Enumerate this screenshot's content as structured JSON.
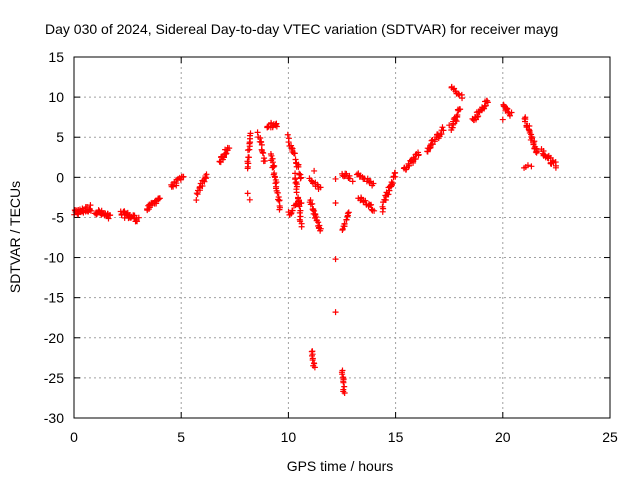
{
  "chart_data": {
    "type": "scatter",
    "title": "Day 030 of 2024, Sidereal Day-to-day VTEC variation (SDTVAR) for receiver mayg",
    "xlabel": "GPS time / hours",
    "ylabel": "SDTVAR / TECUs",
    "xlim": [
      0,
      25
    ],
    "ylim": [
      -30,
      15
    ],
    "xticks": [
      0,
      5,
      10,
      15,
      20,
      25
    ],
    "xtick_labels": [
      "0",
      "5",
      "10",
      "15",
      "20",
      "25"
    ],
    "yticks": [
      15,
      10,
      5,
      0,
      -5,
      -10,
      -15,
      -20,
      -25,
      -30
    ],
    "ytick_labels": [
      "15",
      "10",
      "5",
      "0",
      "-5",
      "-10",
      "-15",
      "-20",
      "-25",
      "-30"
    ],
    "grid": true,
    "marker": "+",
    "color": "#ff0000",
    "segments": [
      {
        "x0": 0.0,
        "y0": -4.5,
        "x1": 0.8,
        "y1": -3.8,
        "n": 30,
        "spread": 0.8
      },
      {
        "x0": 1.0,
        "y0": -4.2,
        "x1": 1.7,
        "y1": -5.0,
        "n": 25,
        "spread": 0.8
      },
      {
        "x0": 2.2,
        "y0": -4.5,
        "x1": 3.0,
        "y1": -5.2,
        "n": 28,
        "spread": 0.8
      },
      {
        "x0": 3.4,
        "y0": -4.0,
        "x1": 4.0,
        "y1": -2.5,
        "n": 20,
        "spread": 0.6
      },
      {
        "x0": 4.5,
        "y0": -1.2,
        "x1": 5.1,
        "y1": 0.0,
        "n": 14,
        "spread": 0.6
      },
      {
        "x0": 5.7,
        "y0": -2.5,
        "x1": 6.2,
        "y1": 0.5,
        "n": 16,
        "spread": 0.8
      },
      {
        "x0": 6.8,
        "y0": 2.0,
        "x1": 7.2,
        "y1": 3.5,
        "n": 18,
        "spread": 0.8
      },
      {
        "x0": 8.1,
        "y0": 1.0,
        "x1": 8.2,
        "y1": 5.5,
        "n": 16,
        "spread": 0.6
      },
      {
        "x0": 8.6,
        "y0": 5.5,
        "x1": 8.9,
        "y1": 2.0,
        "n": 14,
        "spread": 0.6
      },
      {
        "x0": 9.0,
        "y0": 6.5,
        "x1": 9.5,
        "y1": 6.5,
        "n": 14,
        "spread": 0.7
      },
      {
        "x0": 9.2,
        "y0": 3.0,
        "x1": 9.6,
        "y1": -4.0,
        "n": 28,
        "spread": 0.8
      },
      {
        "x0": 10.0,
        "y0": 5.0,
        "x1": 10.6,
        "y1": 0.0,
        "n": 24,
        "spread": 0.9
      },
      {
        "x0": 10.0,
        "y0": -4.5,
        "x1": 10.6,
        "y1": -3.0,
        "n": 14,
        "spread": 0.6
      },
      {
        "x0": 10.3,
        "y0": 0.5,
        "x1": 10.6,
        "y1": -6.0,
        "n": 22,
        "spread": 0.6
      },
      {
        "x0": 11.0,
        "y0": -0.2,
        "x1": 11.5,
        "y1": -1.5,
        "n": 10,
        "spread": 0.5
      },
      {
        "x0": 11.0,
        "y0": -3.0,
        "x1": 11.5,
        "y1": -6.8,
        "n": 22,
        "spread": 0.5
      },
      {
        "x0": 11.1,
        "y0": -21.5,
        "x1": 11.2,
        "y1": -23.8,
        "n": 10,
        "spread": 0.4
      },
      {
        "x0": 12.5,
        "y0": -24.0,
        "x1": 12.6,
        "y1": -26.8,
        "n": 12,
        "spread": 0.4
      },
      {
        "x0": 12.5,
        "y0": -6.5,
        "x1": 12.8,
        "y1": -4.5,
        "n": 12,
        "spread": 0.5
      },
      {
        "x0": 12.5,
        "y0": 0.5,
        "x1": 12.9,
        "y1": 0.0,
        "n": 10,
        "spread": 0.6
      },
      {
        "x0": 13.2,
        "y0": 0.5,
        "x1": 14.0,
        "y1": -1.0,
        "n": 14,
        "spread": 0.6
      },
      {
        "x0": 13.3,
        "y0": -2.5,
        "x1": 14.0,
        "y1": -4.0,
        "n": 18,
        "spread": 0.6
      },
      {
        "x0": 14.4,
        "y0": -3.5,
        "x1": 15.0,
        "y1": 0.5,
        "n": 24,
        "spread": 0.8
      },
      {
        "x0": 15.4,
        "y0": 1.0,
        "x1": 16.1,
        "y1": 3.0,
        "n": 22,
        "spread": 0.7
      },
      {
        "x0": 16.5,
        "y0": 3.5,
        "x1": 17.2,
        "y1": 6.0,
        "n": 24,
        "spread": 0.8
      },
      {
        "x0": 17.6,
        "y0": 6.0,
        "x1": 18.0,
        "y1": 8.5,
        "n": 18,
        "spread": 0.8
      },
      {
        "x0": 17.6,
        "y0": 11.2,
        "x1": 18.1,
        "y1": 10.0,
        "n": 12,
        "spread": 0.5
      },
      {
        "x0": 18.6,
        "y0": 7.0,
        "x1": 19.3,
        "y1": 9.5,
        "n": 24,
        "spread": 0.8
      },
      {
        "x0": 20.0,
        "y0": 9.0,
        "x1": 20.4,
        "y1": 7.8,
        "n": 14,
        "spread": 0.6
      },
      {
        "x0": 21.0,
        "y0": 7.5,
        "x1": 21.6,
        "y1": 3.0,
        "n": 28,
        "spread": 0.9
      },
      {
        "x0": 21.0,
        "y0": 1.2,
        "x1": 21.3,
        "y1": 1.5,
        "n": 4,
        "spread": 0.3
      },
      {
        "x0": 21.8,
        "y0": 3.2,
        "x1": 22.5,
        "y1": 1.5,
        "n": 22,
        "spread": 0.8
      }
    ],
    "points": [
      [
        8.1,
        -2.0
      ],
      [
        8.2,
        -2.8
      ],
      [
        12.2,
        -0.2
      ],
      [
        12.2,
        -3.2
      ],
      [
        12.2,
        -10.2
      ],
      [
        12.2,
        -16.8
      ],
      [
        11.2,
        0.8
      ],
      [
        13.0,
        -0.5
      ],
      [
        14.4,
        -4.3
      ],
      [
        16.5,
        3.2
      ],
      [
        20.0,
        7.2
      ],
      [
        17.5,
        6.5
      ]
    ]
  }
}
